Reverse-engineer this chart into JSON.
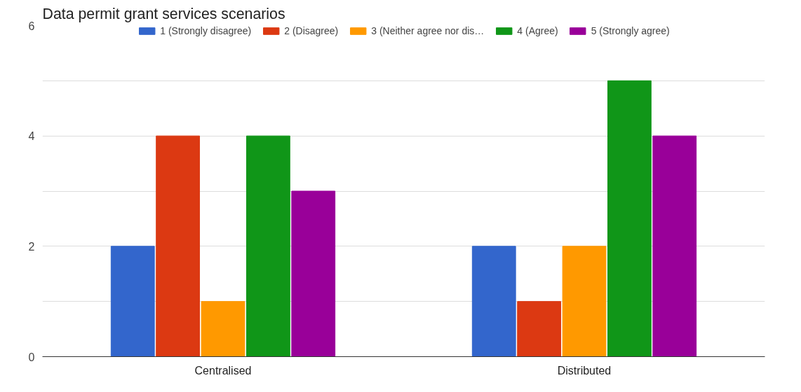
{
  "chart_data": {
    "type": "bar",
    "title": "Data permit grant services scenarios",
    "categories": [
      "Centralised",
      "Distributed"
    ],
    "series": [
      {
        "name": "1 (Strongly disagree)",
        "color": "#3366cc",
        "values": [
          2,
          2
        ]
      },
      {
        "name": "2 (Disagree)",
        "color": "#dc3912",
        "values": [
          4,
          1
        ]
      },
      {
        "name": "3 (Neither agree nor dis…",
        "color": "#ff9900",
        "values": [
          1,
          2
        ]
      },
      {
        "name": "4 (Agree)",
        "color": "#109618",
        "values": [
          4,
          5
        ]
      },
      {
        "name": "5 (Strongly agree)",
        "color": "#990099",
        "values": [
          3,
          4
        ]
      }
    ],
    "ylim": [
      0,
      6
    ],
    "yticks": [
      0,
      {
        "value": 1,
        "label": null
      },
      2,
      {
        "value": 3,
        "label": null
      },
      4,
      {
        "value": 5,
        "label": null
      },
      6
    ],
    "grid": "y",
    "legend": "top"
  }
}
